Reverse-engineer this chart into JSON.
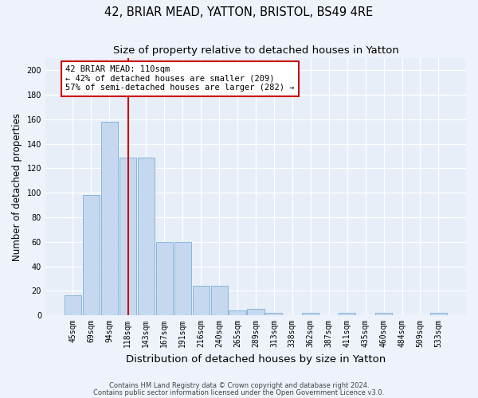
{
  "title": "42, BRIAR MEAD, YATTON, BRISTOL, BS49 4RE",
  "subtitle": "Size of property relative to detached houses in Yatton",
  "xlabel": "Distribution of detached houses by size in Yatton",
  "ylabel": "Number of detached properties",
  "categories": [
    "45sqm",
    "69sqm",
    "94sqm",
    "118sqm",
    "143sqm",
    "167sqm",
    "191sqm",
    "216sqm",
    "240sqm",
    "265sqm",
    "289sqm",
    "313sqm",
    "338sqm",
    "362sqm",
    "387sqm",
    "411sqm",
    "435sqm",
    "460sqm",
    "484sqm",
    "509sqm",
    "533sqm"
  ],
  "values": [
    16,
    98,
    158,
    129,
    129,
    60,
    60,
    24,
    24,
    4,
    5,
    2,
    0,
    2,
    0,
    2,
    0,
    2,
    0,
    0,
    2
  ],
  "bar_color": "#c5d8f0",
  "bar_edge_color": "#7bafd4",
  "background_color": "#e8eef8",
  "fig_background_color": "#edf2fb",
  "grid_color": "#ffffff",
  "ylim": [
    0,
    210
  ],
  "yticks": [
    0,
    20,
    40,
    60,
    80,
    100,
    120,
    140,
    160,
    180,
    200
  ],
  "vline_x_index": 3,
  "vline_color": "#cc0000",
  "annotation_text": "42 BRIAR MEAD: 110sqm\n← 42% of detached houses are smaller (209)\n57% of semi-detached houses are larger (282) →",
  "annotation_box_facecolor": "#ffffff",
  "annotation_box_edgecolor": "#cc0000",
  "footer1": "Contains HM Land Registry data © Crown copyright and database right 2024.",
  "footer2": "Contains public sector information licensed under the Open Government Licence v3.0.",
  "title_fontsize": 10.5,
  "subtitle_fontsize": 9.5,
  "tick_fontsize": 7,
  "ylabel_fontsize": 8.5,
  "xlabel_fontsize": 9.5,
  "annotation_fontsize": 7.5,
  "footer_fontsize": 6.0
}
